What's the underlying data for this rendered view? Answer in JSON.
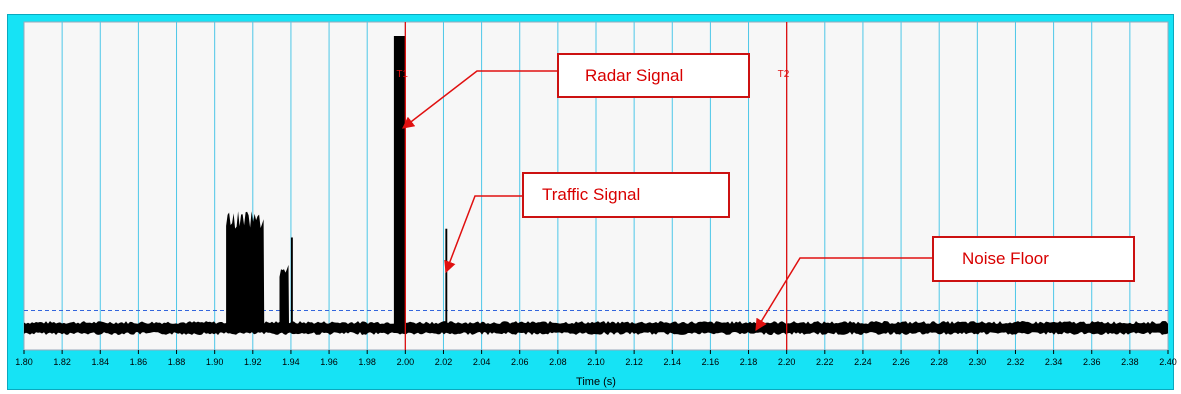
{
  "chart_data": {
    "type": "line",
    "title": "",
    "xlabel": "Time (s)",
    "ylabel": "",
    "xlim": [
      1.8,
      2.4
    ],
    "x_ticks": [
      "1.80",
      "1.82",
      "1.84",
      "1.86",
      "1.88",
      "1.90",
      "1.92",
      "1.94",
      "1.96",
      "1.98",
      "2.00",
      "2.02",
      "2.04",
      "2.06",
      "2.08",
      "2.10",
      "2.12",
      "2.14",
      "2.16",
      "2.18",
      "2.20",
      "2.22",
      "2.24",
      "2.26",
      "2.28",
      "2.30",
      "2.32",
      "2.34",
      "2.36",
      "2.38",
      "2.40"
    ],
    "grid": "vertical",
    "threshold_dashed_level": 0.06,
    "noise_floor_level": 0.0,
    "cursors": [
      {
        "label": "T1",
        "x": 2.0
      },
      {
        "label": "T2",
        "x": 2.2
      }
    ],
    "signal_events": [
      {
        "x_start": 1.906,
        "x_end": 1.926,
        "peak": 0.4
      },
      {
        "x_start": 1.934,
        "x_end": 1.939,
        "peak": 0.22
      },
      {
        "x_start": 1.94,
        "x_end": 1.941,
        "peak": 0.31
      },
      {
        "x_start": 1.994,
        "x_end": 2.0,
        "peak": 1.0
      },
      {
        "x_start": 2.021,
        "x_end": 2.022,
        "peak": 0.34
      }
    ],
    "annotations": [
      {
        "text": "Radar Signal",
        "x": 2.0,
        "y": 0.78
      },
      {
        "text": "Traffic Signal",
        "x": 2.022,
        "y": 0.31
      },
      {
        "text": "Noise Floor",
        "x": 2.18,
        "y": 0.0
      }
    ],
    "colors": {
      "frame": "#16e3f5",
      "plot_bg": "#f7f7f7",
      "grid": "#4dc7e8",
      "signal": "#000000",
      "cursor": "#e01010",
      "threshold": "#3366dd",
      "annotation": "#d80000"
    }
  }
}
